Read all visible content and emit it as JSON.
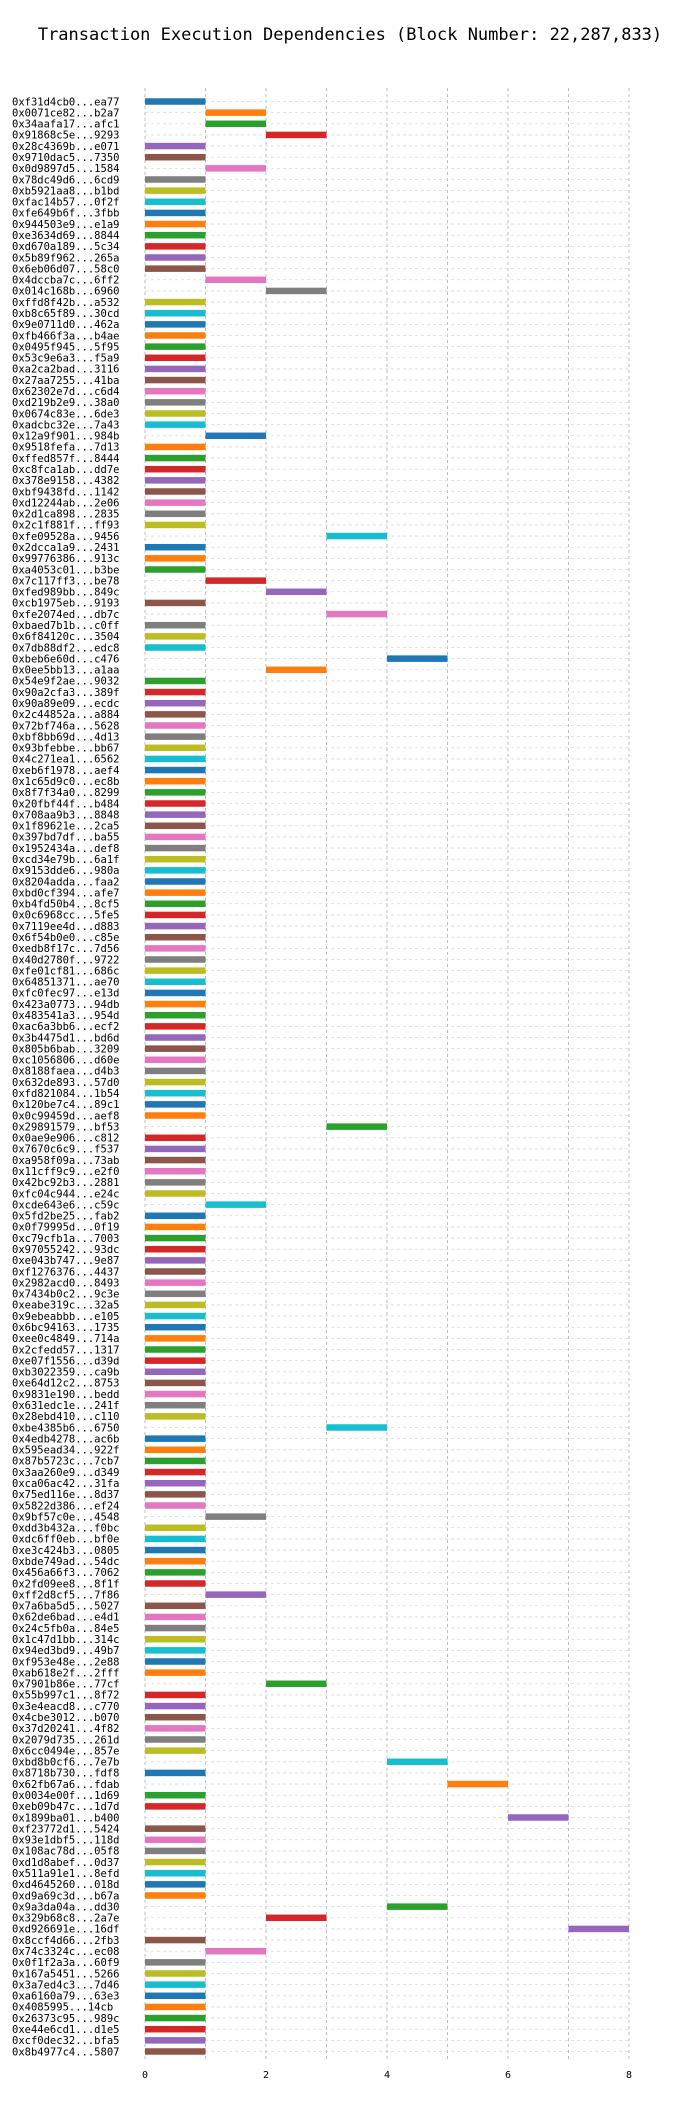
{
  "chart_data": {
    "type": "bar",
    "orientation": "horizontal",
    "title": "Transaction Execution Dependencies (Block Number: 22,287,833)",
    "xlabel": "",
    "ylabel": "",
    "xlim": [
      0,
      8
    ],
    "xticks": [
      0,
      2,
      4,
      6,
      8
    ],
    "grid": "vertical dashed",
    "legend": "none",
    "palette": [
      "#1f77b4",
      "#ff7f0e",
      "#2ca02c",
      "#d62728",
      "#9467bd",
      "#8c564b",
      "#e377c2",
      "#7f7f7f",
      "#bcbd22",
      "#17becf"
    ],
    "bar_label": "transaction",
    "value_label": "execution interval",
    "bars": [
      {
        "label": "0xf31d4cb0...ea77",
        "start": 0,
        "end": 1
      },
      {
        "label": "0x0071ce82...b2a7",
        "start": 1,
        "end": 2
      },
      {
        "label": "0x34aafa17...afc1",
        "start": 1,
        "end": 2
      },
      {
        "label": "0x91868c5e...9293",
        "start": 2,
        "end": 3
      },
      {
        "label": "0x28c4369b...e071",
        "start": 0,
        "end": 1
      },
      {
        "label": "0x9710dac5...7350",
        "start": 0,
        "end": 1
      },
      {
        "label": "0x0d9897d5...1584",
        "start": 1,
        "end": 2
      },
      {
        "label": "0x78dc49d6...6cd9",
        "start": 0,
        "end": 1
      },
      {
        "label": "0xb5921aa8...b1bd",
        "start": 0,
        "end": 1
      },
      {
        "label": "0xfac14b57...0f2f",
        "start": 0,
        "end": 1
      },
      {
        "label": "0xfe649b6f...3fbb",
        "start": 0,
        "end": 1
      },
      {
        "label": "0x944503e9...e1a9",
        "start": 0,
        "end": 1
      },
      {
        "label": "0xe3634d69...8844",
        "start": 0,
        "end": 1
      },
      {
        "label": "0xd670a189...5c34",
        "start": 0,
        "end": 1
      },
      {
        "label": "0x5b89f962...265a",
        "start": 0,
        "end": 1
      },
      {
        "label": "0x6eb06d07...58c0",
        "start": 0,
        "end": 1
      },
      {
        "label": "0x4dccba7c...6ff2",
        "start": 1,
        "end": 2
      },
      {
        "label": "0x014c168b...6960",
        "start": 2,
        "end": 3
      },
      {
        "label": "0xffd8f42b...a532",
        "start": 0,
        "end": 1
      },
      {
        "label": "0xb8c65f89...30cd",
        "start": 0,
        "end": 1
      },
      {
        "label": "0x9e0711d0...462a",
        "start": 0,
        "end": 1
      },
      {
        "label": "0xfb466f3a...b4ae",
        "start": 0,
        "end": 1
      },
      {
        "label": "0x0495f945...5f95",
        "start": 0,
        "end": 1
      },
      {
        "label": "0x53c9e6a3...f5a9",
        "start": 0,
        "end": 1
      },
      {
        "label": "0xa2ca2bad...3116",
        "start": 0,
        "end": 1
      },
      {
        "label": "0x27aa7255...41ba",
        "start": 0,
        "end": 1
      },
      {
        "label": "0x62302e7d...c6d4",
        "start": 0,
        "end": 1
      },
      {
        "label": "0xd219b2e9...38a0",
        "start": 0,
        "end": 1
      },
      {
        "label": "0x0674c83e...6de3",
        "start": 0,
        "end": 1
      },
      {
        "label": "0xadcbc32e...7a43",
        "start": 0,
        "end": 1
      },
      {
        "label": "0x12a9f901...984b",
        "start": 1,
        "end": 2
      },
      {
        "label": "0x9518fefa...7d13",
        "start": 0,
        "end": 1
      },
      {
        "label": "0xffed857f...8444",
        "start": 0,
        "end": 1
      },
      {
        "label": "0xc8fca1ab...dd7e",
        "start": 0,
        "end": 1
      },
      {
        "label": "0x378e9158...4382",
        "start": 0,
        "end": 1
      },
      {
        "label": "0xbf9438fd...1142",
        "start": 0,
        "end": 1
      },
      {
        "label": "0xd12244ab...2e06",
        "start": 0,
        "end": 1
      },
      {
        "label": "0x2d1ca898...2835",
        "start": 0,
        "end": 1
      },
      {
        "label": "0x2c1f881f...ff93",
        "start": 0,
        "end": 1
      },
      {
        "label": "0xfe09528a...9456",
        "start": 3,
        "end": 4
      },
      {
        "label": "0x2dcca1a9...2431",
        "start": 0,
        "end": 1
      },
      {
        "label": "0x99776386...913c",
        "start": 0,
        "end": 1
      },
      {
        "label": "0xa4053c01...b3be",
        "start": 0,
        "end": 1
      },
      {
        "label": "0x7c117ff3...be78",
        "start": 1,
        "end": 2
      },
      {
        "label": "0xfed989bb...849c",
        "start": 2,
        "end": 3
      },
      {
        "label": "0xcb1975eb...9193",
        "start": 0,
        "end": 1
      },
      {
        "label": "0xfe2074ed...db7c",
        "start": 3,
        "end": 4
      },
      {
        "label": "0xbaed7b1b...c0ff",
        "start": 0,
        "end": 1
      },
      {
        "label": "0x6f84120c...3504",
        "start": 0,
        "end": 1
      },
      {
        "label": "0x7db88df2...edc8",
        "start": 0,
        "end": 1
      },
      {
        "label": "0xbeb6e60d...c476",
        "start": 4,
        "end": 5
      },
      {
        "label": "0x0ee5bb13...a1aa",
        "start": 2,
        "end": 3
      },
      {
        "label": "0x54e9f2ae...9032",
        "start": 0,
        "end": 1
      },
      {
        "label": "0x90a2cfa3...389f",
        "start": 0,
        "end": 1
      },
      {
        "label": "0x90a89e09...ecdc",
        "start": 0,
        "end": 1
      },
      {
        "label": "0x2c44852a...a884",
        "start": 0,
        "end": 1
      },
      {
        "label": "0x72bf746a...5628",
        "start": 0,
        "end": 1
      },
      {
        "label": "0xbf8bb69d...4d13",
        "start": 0,
        "end": 1
      },
      {
        "label": "0x93bfebbe...bb67",
        "start": 0,
        "end": 1
      },
      {
        "label": "0x4c271ea1...6562",
        "start": 0,
        "end": 1
      },
      {
        "label": "0xeb6f1978...aef4",
        "start": 0,
        "end": 1
      },
      {
        "label": "0x1c65d9c0...ec8b",
        "start": 0,
        "end": 1
      },
      {
        "label": "0x8f7f34a0...8299",
        "start": 0,
        "end": 1
      },
      {
        "label": "0x20fbf44f...b484",
        "start": 0,
        "end": 1
      },
      {
        "label": "0x708aa9b3...8848",
        "start": 0,
        "end": 1
      },
      {
        "label": "0x1f89621e...2ca5",
        "start": 0,
        "end": 1
      },
      {
        "label": "0x397bd7df...ba55",
        "start": 0,
        "end": 1
      },
      {
        "label": "0x1952434a...def8",
        "start": 0,
        "end": 1
      },
      {
        "label": "0xcd34e79b...6a1f",
        "start": 0,
        "end": 1
      },
      {
        "label": "0x9153dde6...980a",
        "start": 0,
        "end": 1
      },
      {
        "label": "0x8204adda...faa2",
        "start": 0,
        "end": 1
      },
      {
        "label": "0xbd0cf394...afe7",
        "start": 0,
        "end": 1
      },
      {
        "label": "0xb4fd50b4...8cf5",
        "start": 0,
        "end": 1
      },
      {
        "label": "0x0c6968cc...5fe5",
        "start": 0,
        "end": 1
      },
      {
        "label": "0x7119ee4d...d883",
        "start": 0,
        "end": 1
      },
      {
        "label": "0x6f54b0e0...c85e",
        "start": 0,
        "end": 1
      },
      {
        "label": "0xedb8f17c...7d56",
        "start": 0,
        "end": 1
      },
      {
        "label": "0x40d2780f...9722",
        "start": 0,
        "end": 1
      },
      {
        "label": "0xfe01cf81...686c",
        "start": 0,
        "end": 1
      },
      {
        "label": "0x64851371...ae70",
        "start": 0,
        "end": 1
      },
      {
        "label": "0xfc0fec97...e13d",
        "start": 0,
        "end": 1
      },
      {
        "label": "0x423a0773...94db",
        "start": 0,
        "end": 1
      },
      {
        "label": "0x483541a3...954d",
        "start": 0,
        "end": 1
      },
      {
        "label": "0xac6a3bb6...ecf2",
        "start": 0,
        "end": 1
      },
      {
        "label": "0x3b4475d1...bd6d",
        "start": 0,
        "end": 1
      },
      {
        "label": "0x805b6bab...3209",
        "start": 0,
        "end": 1
      },
      {
        "label": "0xc1056806...d60e",
        "start": 0,
        "end": 1
      },
      {
        "label": "0x8188faea...d4b3",
        "start": 0,
        "end": 1
      },
      {
        "label": "0x632de893...57d0",
        "start": 0,
        "end": 1
      },
      {
        "label": "0xfd821084...1b54",
        "start": 0,
        "end": 1
      },
      {
        "label": "0x120be7c4...89c1",
        "start": 0,
        "end": 1
      },
      {
        "label": "0x0c99459d...aef8",
        "start": 0,
        "end": 1
      },
      {
        "label": "0x29891579...bf53",
        "start": 3,
        "end": 4
      },
      {
        "label": "0x0ae9e906...c812",
        "start": 0,
        "end": 1
      },
      {
        "label": "0x7670c6c9...f537",
        "start": 0,
        "end": 1
      },
      {
        "label": "0xa958f09a...73ab",
        "start": 0,
        "end": 1
      },
      {
        "label": "0x11cff9c9...e2f0",
        "start": 0,
        "end": 1
      },
      {
        "label": "0x42bc92b3...2881",
        "start": 0,
        "end": 1
      },
      {
        "label": "0xfc04c944...e24c",
        "start": 0,
        "end": 1
      },
      {
        "label": "0xcde643e6...c59c",
        "start": 1,
        "end": 2
      },
      {
        "label": "0x5fd2be25...fab2",
        "start": 0,
        "end": 1
      },
      {
        "label": "0x0f79995d...0f19",
        "start": 0,
        "end": 1
      },
      {
        "label": "0xc79cfb1a...7003",
        "start": 0,
        "end": 1
      },
      {
        "label": "0x97055242...93dc",
        "start": 0,
        "end": 1
      },
      {
        "label": "0xe043b747...9e87",
        "start": 0,
        "end": 1
      },
      {
        "label": "0xf1276376...4437",
        "start": 0,
        "end": 1
      },
      {
        "label": "0x2982acd0...8493",
        "start": 0,
        "end": 1
      },
      {
        "label": "0x7434b0c2...9c3e",
        "start": 0,
        "end": 1
      },
      {
        "label": "0xeabe319c...32a5",
        "start": 0,
        "end": 1
      },
      {
        "label": "0x9ebeabbb...e105",
        "start": 0,
        "end": 1
      },
      {
        "label": "0x6bc94163...1735",
        "start": 0,
        "end": 1
      },
      {
        "label": "0xee0c4849...714a",
        "start": 0,
        "end": 1
      },
      {
        "label": "0x2cfedd57...1317",
        "start": 0,
        "end": 1
      },
      {
        "label": "0xe07f1556...d39d",
        "start": 0,
        "end": 1
      },
      {
        "label": "0xb3022359...ca9b",
        "start": 0,
        "end": 1
      },
      {
        "label": "0xe64d12c2...8753",
        "start": 0,
        "end": 1
      },
      {
        "label": "0x9831e190...bedd",
        "start": 0,
        "end": 1
      },
      {
        "label": "0x631edc1e...241f",
        "start": 0,
        "end": 1
      },
      {
        "label": "0x28ebd410...c110",
        "start": 0,
        "end": 1
      },
      {
        "label": "0xbe4385b6...6750",
        "start": 3,
        "end": 4
      },
      {
        "label": "0x4edb4278...ac6b",
        "start": 0,
        "end": 1
      },
      {
        "label": "0x595ead34...922f",
        "start": 0,
        "end": 1
      },
      {
        "label": "0x87b5723c...7cb7",
        "start": 0,
        "end": 1
      },
      {
        "label": "0x3aa260e9...d349",
        "start": 0,
        "end": 1
      },
      {
        "label": "0xca06ac42...31fa",
        "start": 0,
        "end": 1
      },
      {
        "label": "0x75ed116e...8d37",
        "start": 0,
        "end": 1
      },
      {
        "label": "0x5822d386...ef24",
        "start": 0,
        "end": 1
      },
      {
        "label": "0x9bf57c0e...4548",
        "start": 1,
        "end": 2
      },
      {
        "label": "0xdd3b432a...f0bc",
        "start": 0,
        "end": 1
      },
      {
        "label": "0xdc6ff0eb...bf0e",
        "start": 0,
        "end": 1
      },
      {
        "label": "0xe3c424b3...0805",
        "start": 0,
        "end": 1
      },
      {
        "label": "0xbde749ad...54dc",
        "start": 0,
        "end": 1
      },
      {
        "label": "0x456a66f3...7062",
        "start": 0,
        "end": 1
      },
      {
        "label": "0x2fd09ee8...8f1f",
        "start": 0,
        "end": 1
      },
      {
        "label": "0xff2d8cf5...7f86",
        "start": 1,
        "end": 2
      },
      {
        "label": "0x7a6ba5d5...5027",
        "start": 0,
        "end": 1
      },
      {
        "label": "0x62de6bad...e4d1",
        "start": 0,
        "end": 1
      },
      {
        "label": "0x24c5fb0a...84e5",
        "start": 0,
        "end": 1
      },
      {
        "label": "0x1c47d1bb...314c",
        "start": 0,
        "end": 1
      },
      {
        "label": "0x94ed3bd9...49b7",
        "start": 0,
        "end": 1
      },
      {
        "label": "0xf953e48e...2e88",
        "start": 0,
        "end": 1
      },
      {
        "label": "0xab618e2f...2fff",
        "start": 0,
        "end": 1
      },
      {
        "label": "0x7901b86e...77cf",
        "start": 2,
        "end": 3
      },
      {
        "label": "0x55b997c1...8f72",
        "start": 0,
        "end": 1
      },
      {
        "label": "0x3e4eacd8...c770",
        "start": 0,
        "end": 1
      },
      {
        "label": "0x4cbe3012...b070",
        "start": 0,
        "end": 1
      },
      {
        "label": "0x37d20241...4f82",
        "start": 0,
        "end": 1
      },
      {
        "label": "0x2079d735...261d",
        "start": 0,
        "end": 1
      },
      {
        "label": "0x6cc0494e...857e",
        "start": 0,
        "end": 1
      },
      {
        "label": "0xbd8b0cf6...7e7b",
        "start": 4,
        "end": 5
      },
      {
        "label": "0x8718b730...fdf8",
        "start": 0,
        "end": 1
      },
      {
        "label": "0x62fb67a6...fdab",
        "start": 5,
        "end": 6
      },
      {
        "label": "0x0034e00f...1d69",
        "start": 0,
        "end": 1
      },
      {
        "label": "0xeb09b47c...1d7d",
        "start": 0,
        "end": 1
      },
      {
        "label": "0x1899ba01...b400",
        "start": 6,
        "end": 7
      },
      {
        "label": "0xf23772d1...5424",
        "start": 0,
        "end": 1
      },
      {
        "label": "0x93e1dbf5...118d",
        "start": 0,
        "end": 1
      },
      {
        "label": "0x108ac78d...05f8",
        "start": 0,
        "end": 1
      },
      {
        "label": "0xd1d8abef...0d37",
        "start": 0,
        "end": 1
      },
      {
        "label": "0x511a91e1...8efd",
        "start": 0,
        "end": 1
      },
      {
        "label": "0xd4645260...018d",
        "start": 0,
        "end": 1
      },
      {
        "label": "0xd9a69c3d...b67a",
        "start": 0,
        "end": 1
      },
      {
        "label": "0x9a3da04a...dd30",
        "start": 4,
        "end": 5
      },
      {
        "label": "0x329b68c8...2a7e",
        "start": 2,
        "end": 3
      },
      {
        "label": "0xd926691e...16df",
        "start": 7,
        "end": 8
      },
      {
        "label": "0x8ccf4d66...2fb3",
        "start": 0,
        "end": 1
      },
      {
        "label": "0x74c3324c...ec08",
        "start": 1,
        "end": 2
      },
      {
        "label": "0x0f1f2a3a...60f9",
        "start": 0,
        "end": 1
      },
      {
        "label": "0x167a5451...5266",
        "start": 0,
        "end": 1
      },
      {
        "label": "0x3a7ed4c3...7d46",
        "start": 0,
        "end": 1
      },
      {
        "label": "0xa6160a79...63e3",
        "start": 0,
        "end": 1
      },
      {
        "label": "0x4085995...14cb",
        "start": 0,
        "end": 1
      },
      {
        "label": "0x26373c95...989c",
        "start": 0,
        "end": 1
      },
      {
        "label": "0xe44e6cd1...d1e5",
        "start": 0,
        "end": 1
      },
      {
        "label": "0xcf0dec32...bfa5",
        "start": 0,
        "end": 1
      },
      {
        "label": "0x8b4977c4...5807",
        "start": 0,
        "end": 1
      }
    ]
  }
}
